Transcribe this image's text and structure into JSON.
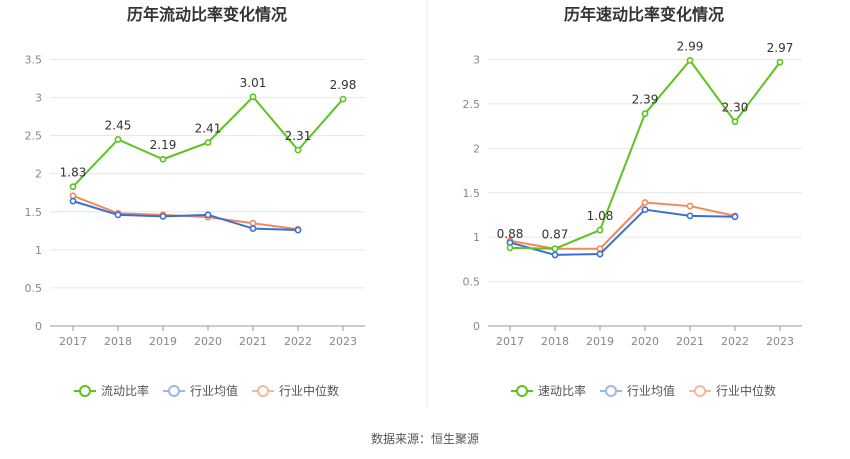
{
  "colors": {
    "main": "#5cc31f",
    "avg": "#3b6fd6",
    "median": "#f08a5d",
    "divider": "#e8e8e8"
  },
  "legend": {
    "main_left": "流动比率",
    "main_right": "速动比率",
    "avg": "行业均值",
    "median": "行业中位数"
  },
  "source": "数据来源：恒生聚源",
  "chart_data": [
    {
      "type": "line",
      "title": "历年流动比率变化情况",
      "categories": [
        "2017",
        "2018",
        "2019",
        "2020",
        "2021",
        "2022",
        "2023"
      ],
      "ylim": [
        0,
        3.5
      ],
      "yticks": [
        "0",
        "0.5",
        "1",
        "1.5",
        "2",
        "2.5",
        "3",
        "3.5"
      ],
      "grid": true,
      "legend_position": "bottom-center",
      "series": [
        {
          "name": "流动比率",
          "values": [
            1.83,
            2.45,
            2.19,
            2.41,
            3.01,
            2.31,
            2.98
          ],
          "labels": [
            "1.83",
            "2.45",
            "2.19",
            "2.41",
            "3.01",
            "2.31",
            "2.98"
          ]
        },
        {
          "name": "行业均值",
          "values": [
            1.64,
            1.46,
            1.44,
            1.46,
            1.28,
            1.26,
            null
          ]
        },
        {
          "name": "行业中位数",
          "values": [
            1.71,
            1.48,
            1.46,
            1.43,
            1.35,
            1.27,
            null
          ]
        }
      ]
    },
    {
      "type": "line",
      "title": "历年速动比率变化情况",
      "categories": [
        "2017",
        "2018",
        "2019",
        "2020",
        "2021",
        "2022",
        "2023"
      ],
      "ylim": [
        0,
        3
      ],
      "yticks": [
        "0",
        "0.5",
        "1",
        "1.5",
        "2",
        "2.5",
        "3"
      ],
      "grid": true,
      "legend_position": "bottom-center",
      "series": [
        {
          "name": "速动比率",
          "values": [
            0.88,
            0.87,
            1.08,
            2.39,
            2.99,
            2.3,
            2.97
          ],
          "labels": [
            "0.88",
            "0.87",
            "1.08",
            "2.39",
            "2.99",
            "2.30",
            "2.97"
          ]
        },
        {
          "name": "行业均值",
          "values": [
            0.94,
            0.8,
            0.81,
            1.31,
            1.24,
            1.23,
            null
          ]
        },
        {
          "name": "行业中位数",
          "values": [
            0.96,
            0.87,
            0.87,
            1.39,
            1.35,
            1.24,
            null
          ]
        }
      ]
    }
  ]
}
